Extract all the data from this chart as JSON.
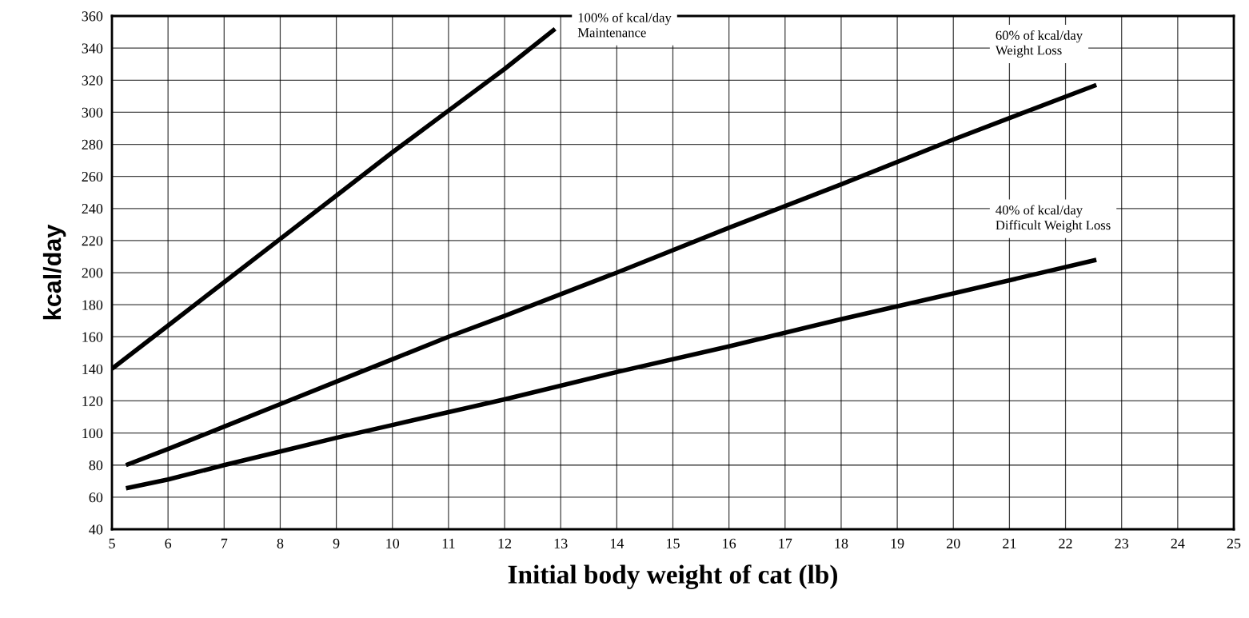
{
  "chart_data": {
    "type": "line",
    "xlabel": "Initial body weight of cat (lb)",
    "ylabel": "kcal/day",
    "xlim": [
      5,
      25
    ],
    "xticks": [
      5,
      6,
      7,
      8,
      9,
      10,
      11,
      12,
      13,
      14,
      15,
      16,
      17,
      18,
      19,
      20,
      21,
      22,
      23,
      24,
      25
    ],
    "ylim": [
      40,
      360
    ],
    "yticks": [
      40,
      60,
      80,
      100,
      120,
      140,
      160,
      180,
      200,
      220,
      240,
      260,
      280,
      300,
      320,
      340,
      360
    ],
    "grid": true,
    "marker": "none",
    "line_style": "solid",
    "series": [
      {
        "name": "100% of kcal/day\nMaintenance",
        "color": "#000000",
        "x": [
          5,
          6,
          7,
          8,
          9,
          10,
          11,
          12,
          12.9
        ],
        "values": [
          140,
          167,
          194,
          221,
          248,
          275,
          301,
          327,
          352
        ]
      },
      {
        "name": "60% of kcal/day\nWeight Loss",
        "color": "#000000",
        "x": [
          5.25,
          6,
          7,
          8,
          9,
          10,
          11,
          12,
          14,
          16,
          18,
          20,
          22.55
        ],
        "values": [
          80,
          90,
          104,
          118,
          132,
          146,
          160,
          173,
          200,
          228,
          255,
          283,
          317
        ]
      },
      {
        "name": "40% of kcal/day\nDifficult Weight Loss",
        "color": "#000000",
        "x": [
          5.25,
          6,
          7,
          8,
          9,
          10,
          11,
          12,
          14,
          16,
          18,
          20,
          22.55
        ],
        "values": [
          65.5,
          71,
          80,
          88.5,
          97,
          105,
          113,
          121,
          138,
          154,
          171,
          187,
          208
        ]
      }
    ]
  }
}
